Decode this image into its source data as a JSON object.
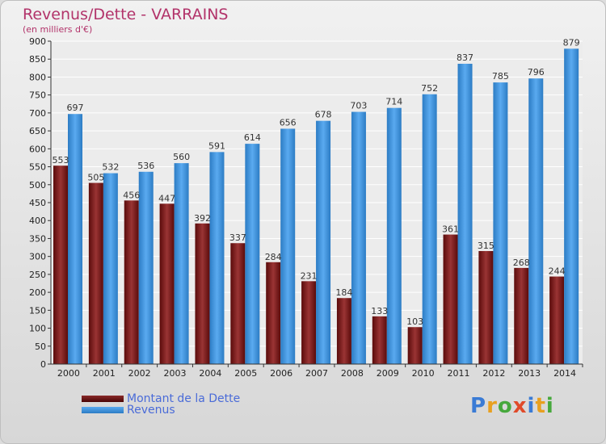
{
  "title": "Revenus/Dette - VARRAINS",
  "subtitle": "(en milliers d'€)",
  "colors": {
    "dette": "#7a1a1a",
    "revenus": "#3a8fd8",
    "title": "#b2336a",
    "legend_text": "#4a6bd8"
  },
  "legend": {
    "dette": "Montant de la Dette",
    "revenus": "Revenus"
  },
  "logo": {
    "text": "Proxiti",
    "letter_colors": [
      "#3a7bd5",
      "#e8a020",
      "#46a83c",
      "#e04a2a",
      "#3a7bd5",
      "#e8a020",
      "#46a83c"
    ]
  },
  "chart_data": {
    "type": "bar",
    "title": "Revenus/Dette - VARRAINS",
    "subtitle": "(en milliers d'€)",
    "categories": [
      "2000",
      "2001",
      "2002",
      "2003",
      "2004",
      "2005",
      "2006",
      "2007",
      "2008",
      "2009",
      "2010",
      "2011",
      "2012",
      "2013",
      "2014"
    ],
    "series": [
      {
        "name": "Montant de la Dette",
        "values": [
          553,
          505,
          456,
          447,
          392,
          337,
          284,
          231,
          184,
          133,
          103,
          361,
          315,
          268,
          244
        ]
      },
      {
        "name": "Revenus",
        "values": [
          697,
          532,
          536,
          560,
          591,
          614,
          656,
          678,
          703,
          714,
          752,
          837,
          785,
          796,
          879
        ]
      }
    ],
    "ylim": [
      0,
      900
    ],
    "ytick_step": 50,
    "grid": true,
    "legend_position": "bottom-left"
  }
}
